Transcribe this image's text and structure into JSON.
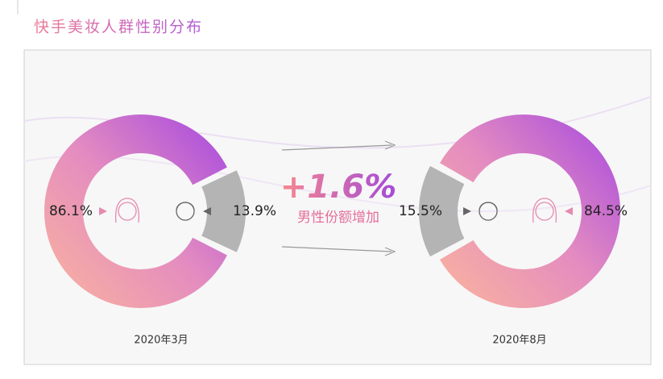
{
  "title": "快手美妆人群性别分布",
  "annotation": "+1.6%",
  "annotation_text": "男性份额增加",
  "chart_data": [
    {
      "type": "donut",
      "label": "2020年3月",
      "values": [
        86.1,
        13.9
      ],
      "value_labels": [
        "86.1%",
        "13.9%"
      ],
      "colors": [
        "url(#pinkgrad)",
        "#b5b4b5"
      ]
    },
    {
      "type": "donut",
      "label": "2020年8月",
      "values": [
        84.5,
        15.5
      ],
      "value_labels": [
        "84.5%",
        "15.5%"
      ],
      "colors": [
        "url(#pinkgrad)",
        "#b5b4b5"
      ]
    }
  ]
}
